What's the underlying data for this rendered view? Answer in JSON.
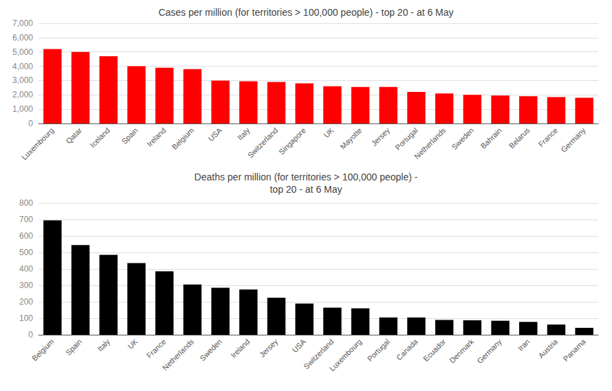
{
  "chart_data": [
    {
      "type": "bar",
      "title": "Cases per million (for territories > 100,000 people) - top 20 - at 6 May",
      "categories": [
        "Luxembourg",
        "Qatar",
        "Iceland",
        "Spain",
        "Ireland",
        "Belgium",
        "USA",
        "Italy",
        "Switzerland",
        "Singapore",
        "UK",
        "Mayotte",
        "Jersey",
        "Portugal",
        "Netherlands",
        "Sweden",
        "Bahrain",
        "Belarus",
        "France",
        "Germany"
      ],
      "values": [
        5200,
        5000,
        4700,
        4000,
        3900,
        3800,
        3000,
        2950,
        2900,
        2800,
        2600,
        2550,
        2550,
        2200,
        2100,
        2000,
        1950,
        1900,
        1850,
        1800
      ],
      "color": "#FF0000",
      "ylim": [
        0,
        7000
      ],
      "yticks": [
        0,
        {
          "value": 1000,
          "label": "1,000"
        },
        {
          "value": 2000,
          "label": "2,000"
        },
        {
          "value": 3000,
          "label": "3,000"
        },
        {
          "value": 4000,
          "label": "4,000"
        },
        {
          "value": 5000,
          "label": "5,000"
        },
        {
          "value": 6000,
          "label": "6,000"
        },
        {
          "value": 7000,
          "label": "7,000"
        }
      ],
      "grid": true
    },
    {
      "type": "bar",
      "title": "Deaths per million (for territories > 100,000 people) -\ntop 20 - at 6 May",
      "categories": [
        "Belgium",
        "Spain",
        "Italy",
        "UK",
        "France",
        "Netherlands",
        "Sweden",
        "Ireland",
        "Jersey",
        "USA",
        "Switzerland",
        "Luxembourg",
        "Portugal",
        "Canada",
        "Ecuador",
        "Denmark",
        "Germany",
        "Iran",
        "Austria",
        "Panama"
      ],
      "values": [
        695,
        545,
        485,
        435,
        385,
        305,
        285,
        275,
        225,
        190,
        165,
        160,
        105,
        105,
        90,
        88,
        85,
        78,
        62,
        42
      ],
      "color": "#000000",
      "ylim": [
        0,
        800
      ],
      "yticks": [
        0,
        100,
        200,
        300,
        400,
        500,
        600,
        700,
        800
      ],
      "grid": true
    }
  ]
}
